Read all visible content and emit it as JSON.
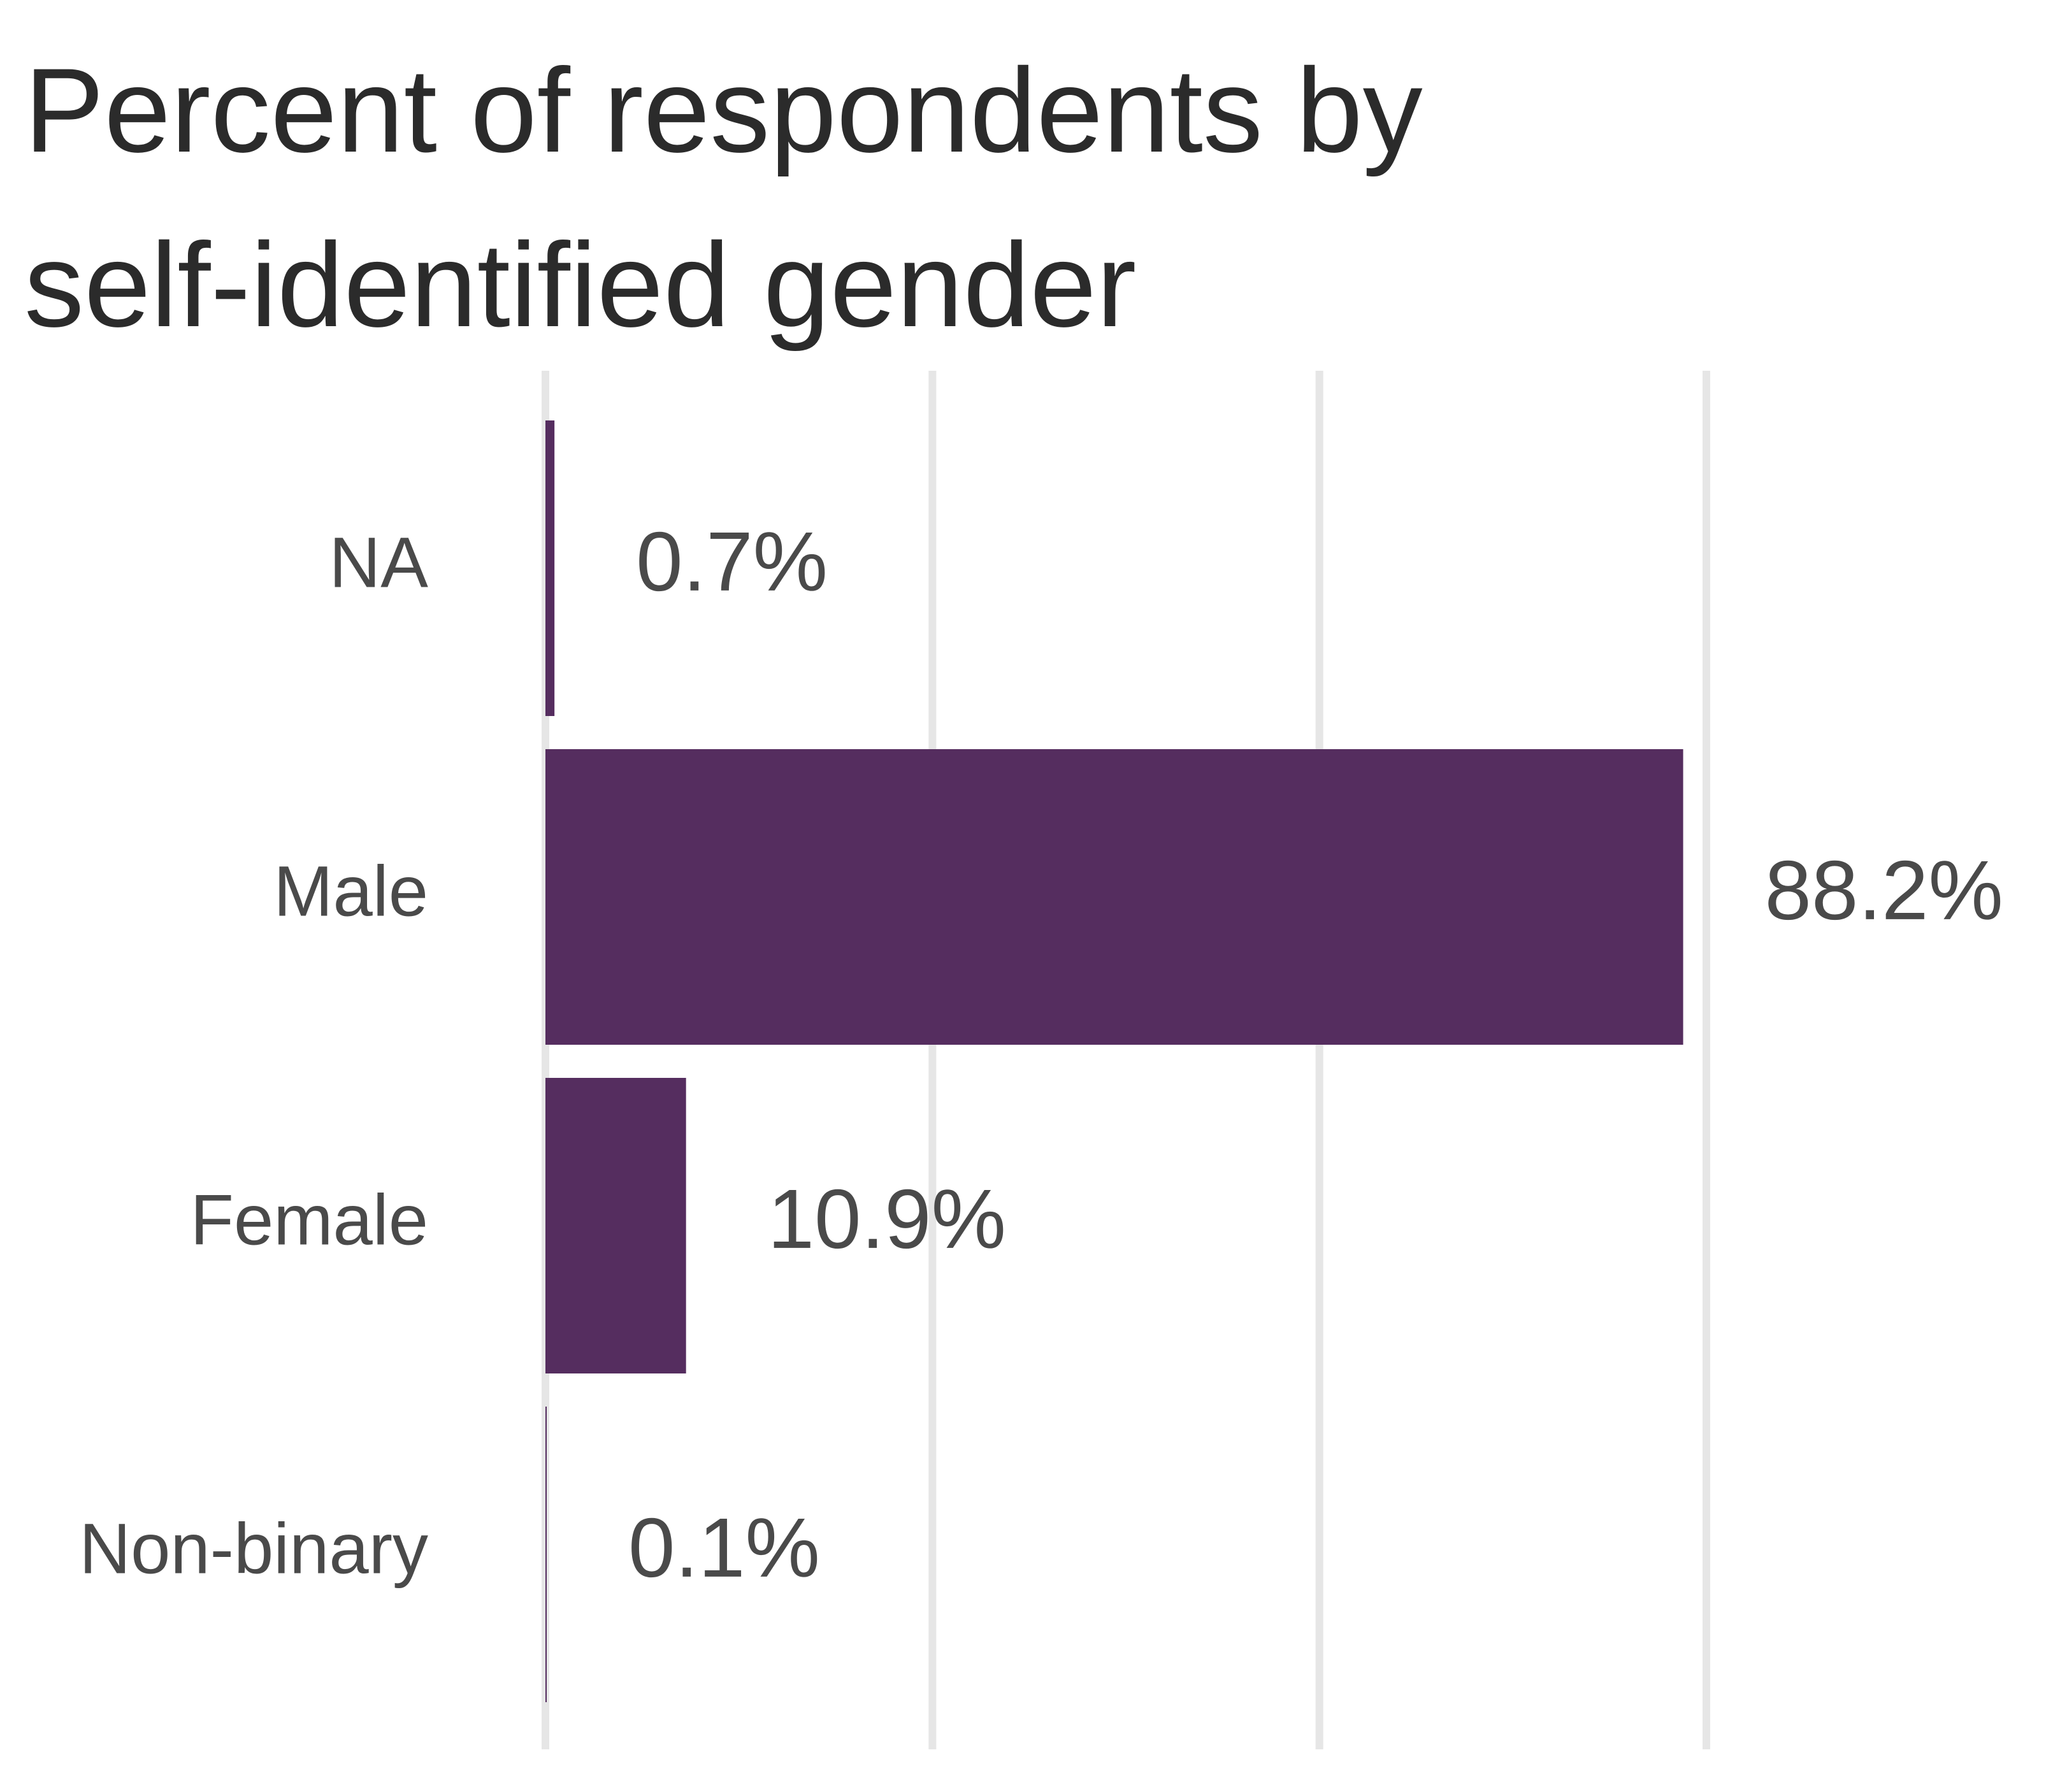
{
  "chart_data": {
    "type": "bar",
    "orientation": "horizontal",
    "title_lines": [
      "Percent of respondents by",
      "self-identified gender"
    ],
    "xlabel": "",
    "ylabel": "",
    "categories": [
      "NA",
      "Male",
      "Female",
      "Non-binary"
    ],
    "values": [
      0.7,
      88.2,
      10.9,
      0.1
    ],
    "value_labels": [
      "0.7%",
      "88.2%",
      "10.9%",
      "0.1%"
    ],
    "xlim": [
      0,
      90
    ],
    "grid": true,
    "gridline_values": [
      0,
      30,
      60,
      90
    ],
    "bar_color": "#552d5f",
    "grid_color": "#e6e6e6",
    "legend": "none"
  }
}
